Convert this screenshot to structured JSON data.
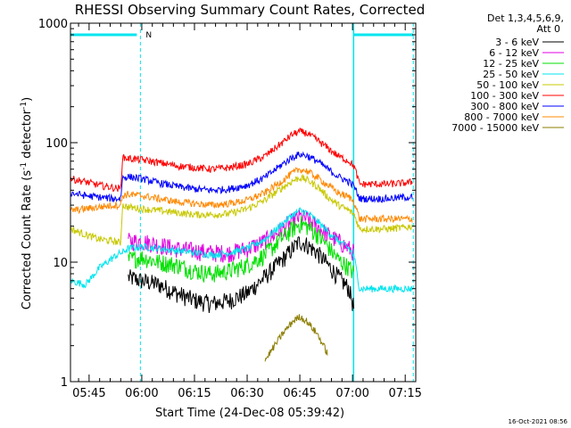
{
  "chart_data": {
    "type": "line",
    "title": "RHESSI Observing Summary Count Rates, Corrected",
    "xlabel": "Start Time (24-Dec-08 05:39:42)",
    "ylabel": "Corrected Count Rate (s",
    "ylabel_sup1": "-1",
    "ylabel_mid": " detector",
    "ylabel_sup2": "-1",
    "ylabel_end": ")",
    "x_tick_labels": [
      "05:45",
      "06:00",
      "06:15",
      "06:30",
      "06:45",
      "07:00",
      "07:15"
    ],
    "x_tick_minutes": [
      345,
      360,
      375,
      390,
      405,
      420,
      435
    ],
    "y_scale": "log",
    "ylim": [
      1,
      1000
    ],
    "xlim_minutes": [
      339.7,
      438
    ],
    "y_tick_labels": [
      "1",
      "10",
      "100",
      "1000"
    ],
    "y_tick_values": [
      1,
      10,
      100,
      1000
    ],
    "legend_header": [
      "Det 1,3,4,5,6,9,",
      "Att 0"
    ],
    "legend_placement": "outside-right",
    "grid": false,
    "timestamp": "16-Oct-2021 08:56",
    "night_marker": "N",
    "markers": {
      "night_start_minute": 359.6,
      "night_end_minute": 420.3,
      "saa_end_minute": 437.3,
      "bar_value": 800,
      "color": "#00e5ee"
    },
    "x_minutes": [
      339.7,
      344,
      348,
      352,
      354,
      354.5,
      356,
      360,
      365,
      370,
      375,
      380,
      385,
      390,
      395,
      400,
      403,
      405,
      407,
      410,
      413,
      416,
      419,
      420.5,
      422,
      425,
      430,
      435,
      437
    ],
    "series": [
      {
        "name": "3 - 6 keV",
        "color": "#000000",
        "values": [
          null,
          null,
          null,
          null,
          null,
          null,
          7.5,
          7,
          6.5,
          5.5,
          4.8,
          4.5,
          4.8,
          5.5,
          7.5,
          10.5,
          13,
          15,
          14,
          12,
          9.5,
          7.5,
          6,
          4,
          null,
          null,
          null,
          null,
          null
        ]
      },
      {
        "name": "6 - 12 keV",
        "color": "#e000e0",
        "values": [
          null,
          null,
          null,
          null,
          null,
          null,
          15,
          15,
          14,
          13,
          12.5,
          12,
          12,
          13,
          15,
          19,
          22,
          24,
          23,
          20,
          17,
          15,
          13,
          12,
          null,
          null,
          null,
          null,
          null
        ]
      },
      {
        "name": "12 - 25 keV",
        "color": "#00e000",
        "values": [
          null,
          null,
          null,
          null,
          null,
          null,
          10.5,
          11,
          10,
          9.5,
          8.5,
          8,
          8.5,
          9.5,
          11.5,
          16,
          19,
          21,
          20,
          17,
          13.5,
          10.5,
          9,
          8,
          null,
          null,
          null,
          null,
          null
        ]
      },
      {
        "name": "25 - 50 keV",
        "color": "#00e5ee",
        "values": [
          7,
          6.5,
          9,
          11,
          12,
          12,
          13,
          13.5,
          13,
          12.5,
          12,
          11.5,
          12,
          13,
          15.5,
          21,
          25,
          27,
          26,
          22,
          18,
          15,
          13,
          11,
          6,
          6,
          6,
          6,
          6
        ]
      },
      {
        "name": "50 - 100 keV",
        "color": "#c8c800",
        "values": [
          19,
          17,
          15.5,
          15,
          14.5,
          30,
          29,
          28,
          27,
          26,
          25,
          25,
          25.5,
          28,
          33,
          42,
          48,
          51,
          49,
          43,
          35,
          30,
          27,
          25,
          19,
          19,
          19,
          19.5,
          20
        ]
      },
      {
        "name": "100 - 300 keV",
        "color": "#ff0000",
        "values": [
          50,
          47,
          44,
          42,
          41,
          75,
          74,
          72,
          68,
          64,
          62,
          60,
          62,
          66,
          77,
          100,
          118,
          124,
          120,
          105,
          90,
          77,
          70,
          63,
          45,
          45,
          45,
          46,
          47
        ]
      },
      {
        "name": "300 - 800 keV",
        "color": "#0000ff",
        "values": [
          38,
          36,
          35,
          34,
          34,
          51,
          52,
          50,
          46,
          43,
          41,
          40,
          41,
          44,
          51,
          66,
          76,
          80,
          78,
          70,
          60,
          52,
          47,
          43,
          34,
          34,
          34,
          35,
          35
        ]
      },
      {
        "name": "800 - 7000 keV",
        "color": "#ff8800",
        "values": [
          27,
          28,
          29,
          30,
          30,
          36,
          37,
          36,
          34,
          32,
          31,
          30,
          31,
          33,
          38,
          48,
          56,
          60,
          58,
          51,
          44,
          38,
          35,
          32,
          23,
          23,
          23,
          23,
          23
        ]
      },
      {
        "name": "7000 - 15000 keV",
        "color": "#8b7d00",
        "values": [
          null,
          null,
          null,
          null,
          null,
          null,
          null,
          null,
          null,
          null,
          null,
          null,
          null,
          null,
          1.5,
          2.5,
          3.2,
          3.5,
          3.2,
          2.5,
          1.7,
          null,
          null,
          null,
          null,
          null,
          null,
          null,
          null
        ]
      }
    ]
  }
}
